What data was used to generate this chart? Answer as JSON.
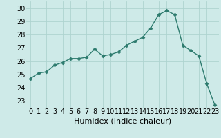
{
  "x": [
    0,
    1,
    2,
    3,
    4,
    5,
    6,
    7,
    8,
    9,
    10,
    11,
    12,
    13,
    14,
    15,
    16,
    17,
    18,
    19,
    20,
    21,
    22,
    23
  ],
  "y": [
    24.7,
    25.1,
    25.2,
    25.7,
    25.9,
    26.2,
    26.2,
    26.3,
    26.9,
    26.4,
    26.5,
    26.7,
    27.2,
    27.5,
    27.8,
    28.5,
    29.5,
    29.8,
    29.5,
    27.2,
    26.8,
    26.4,
    24.3,
    22.7
  ],
  "xlabel": "Humidex (Indice chaleur)",
  "ylim": [
    22.5,
    30.5
  ],
  "xlim": [
    -0.5,
    23.5
  ],
  "yticks": [
    23,
    24,
    25,
    26,
    27,
    28,
    29,
    30
  ],
  "xticks": [
    0,
    1,
    2,
    3,
    4,
    5,
    6,
    7,
    8,
    9,
    10,
    11,
    12,
    13,
    14,
    15,
    16,
    17,
    18,
    19,
    20,
    21,
    22,
    23
  ],
  "line_color": "#2d7b6e",
  "marker": "D",
  "marker_size": 2.5,
  "bg_color": "#ceeae8",
  "grid_color": "#aed4d0",
  "xlabel_fontsize": 8,
  "tick_fontsize": 7
}
